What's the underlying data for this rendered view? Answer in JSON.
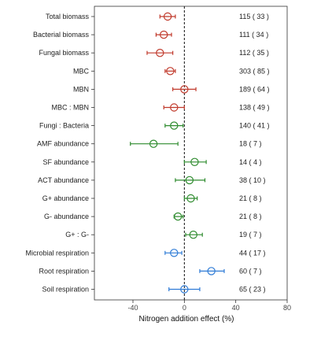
{
  "chart_data": {
    "type": "scatter",
    "subtype": "forest-plot",
    "xlabel": "Nitrogen addition effect (%)",
    "xlim": [
      -70,
      80
    ],
    "xticks": [
      -40,
      0,
      40,
      80
    ],
    "reference_line": 0,
    "grid": false,
    "rows": [
      {
        "label": "Total biomass",
        "effect": -13,
        "ci": [
          -19,
          -7
        ],
        "n": "115 ( 33 )",
        "color": "#c0392b"
      },
      {
        "label": "Bacterial biomass",
        "effect": -16,
        "ci": [
          -22,
          -10
        ],
        "n": "111 ( 34 )",
        "color": "#c0392b"
      },
      {
        "label": "Fungal biomass",
        "effect": -19,
        "ci": [
          -29,
          -9
        ],
        "n": "112 ( 35 )",
        "color": "#c0392b"
      },
      {
        "label": "MBC",
        "effect": -11,
        "ci": [
          -15,
          -7
        ],
        "n": "303 ( 85 )",
        "color": "#c0392b"
      },
      {
        "label": "MBN",
        "effect": 0,
        "ci": [
          -9,
          9
        ],
        "n": "189 ( 64 )",
        "color": "#c0392b"
      },
      {
        "label": "MBC : MBN",
        "effect": -8,
        "ci": [
          -16,
          0
        ],
        "n": "138 ( 49 )",
        "color": "#c0392b"
      },
      {
        "label": "Fungi : Bacteria",
        "effect": -8,
        "ci": [
          -15,
          -1
        ],
        "n": "140 ( 41 )",
        "color": "#2e8b2e"
      },
      {
        "label": "AMF abundance",
        "effect": -24,
        "ci": [
          -42,
          -5
        ],
        "n": "18 ( 7 )",
        "color": "#2e8b2e"
      },
      {
        "label": "SF abundance",
        "effect": 8,
        "ci": [
          0,
          17
        ],
        "n": "14 ( 4 )",
        "color": "#2e8b2e"
      },
      {
        "label": "ACT abundance",
        "effect": 4,
        "ci": [
          -7,
          16
        ],
        "n": "38 ( 10 )",
        "color": "#2e8b2e"
      },
      {
        "label": "G+ abundance",
        "effect": 5,
        "ci": [
          0,
          10
        ],
        "n": "21 ( 8 )",
        "color": "#2e8b2e"
      },
      {
        "label": "G- abundance",
        "effect": -5,
        "ci": [
          -8,
          -1
        ],
        "n": "21 ( 8 )",
        "color": "#2e8b2e"
      },
      {
        "label": "G+ : G-",
        "effect": 7,
        "ci": [
          1,
          14
        ],
        "n": "19 ( 7 )",
        "color": "#2e8b2e"
      },
      {
        "label": "Microbial respiration",
        "effect": -8,
        "ci": [
          -15,
          -2
        ],
        "n": "44 ( 17 )",
        "color": "#2e7bd6"
      },
      {
        "label": "Root respiration",
        "effect": 21,
        "ci": [
          12,
          31
        ],
        "n": "60 ( 7 )",
        "color": "#2e7bd6"
      },
      {
        "label": "Soil respiration",
        "effect": 0,
        "ci": [
          -12,
          12
        ],
        "n": "65 ( 23 )",
        "color": "#2e7bd6"
      }
    ]
  }
}
